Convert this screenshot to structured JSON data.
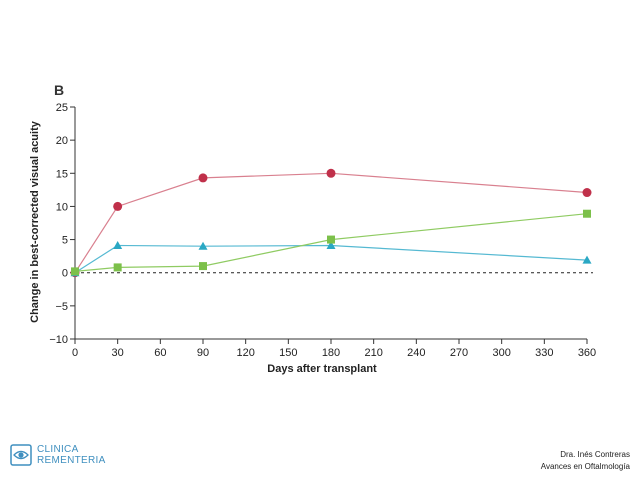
{
  "chart_data": {
    "type": "line",
    "panel_label": "B",
    "xlabel": "Days after transplant",
    "ylabel": "Change in best-corrected visual acuity",
    "xlim": [
      0,
      360
    ],
    "ylim": [
      -10,
      25
    ],
    "xticks": [
      0,
      30,
      60,
      90,
      120,
      150,
      180,
      210,
      240,
      270,
      300,
      330,
      360
    ],
    "yticks": [
      -10,
      -5,
      0,
      5,
      10,
      15,
      20,
      25
    ],
    "ytick_labels": [
      "−10",
      "−5",
      "0",
      "5",
      "10",
      "15",
      "20",
      "25"
    ],
    "zero_reference_line": "dashed",
    "grid": false,
    "series": [
      {
        "color": "#c0304a",
        "line_color": "#d9808f",
        "marker": "circle",
        "x": [
          0,
          30,
          90,
          180,
          360
        ],
        "y": [
          0,
          10,
          14.3,
          15,
          12.1
        ]
      },
      {
        "color": "#2aa8c4",
        "line_color": "#55b9d2",
        "marker": "triangle",
        "x": [
          0,
          30,
          90,
          180,
          360
        ],
        "y": [
          0,
          4.1,
          4,
          4.1,
          1.9
        ]
      },
      {
        "color": "#7cc04a",
        "line_color": "#8fcb62",
        "marker": "square",
        "x": [
          0,
          30,
          90,
          180,
          360
        ],
        "y": [
          0.2,
          0.8,
          1,
          5,
          8.9
        ]
      }
    ]
  },
  "footer": {
    "logo_line1": "CLINICA",
    "logo_line2": "REMENTERIA",
    "author": "Dra. Inés Contreras",
    "subtitle": "Avances en Oftalmología"
  }
}
